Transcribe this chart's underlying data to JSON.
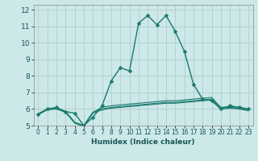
{
  "title": "",
  "xlabel": "Humidex (Indice chaleur)",
  "bg_color": "#cce8e8",
  "grid_color": "#b0cccc",
  "line_color": "#1a7a6e",
  "xlim": [
    -0.5,
    23.5
  ],
  "ylim": [
    5,
    12.3
  ],
  "yticks": [
    5,
    6,
    7,
    8,
    9,
    10,
    11,
    12
  ],
  "xticks": [
    0,
    1,
    2,
    3,
    4,
    5,
    6,
    7,
    8,
    9,
    10,
    11,
    12,
    13,
    14,
    15,
    16,
    17,
    18,
    19,
    20,
    21,
    22,
    23
  ],
  "xticklabels": [
    "0",
    "1",
    "2",
    "3",
    "4",
    "5",
    "6",
    "7",
    "8",
    "9",
    "10",
    "11",
    "12",
    "13",
    "14",
    "15",
    "16",
    "17",
    "18",
    "19",
    "20",
    "21",
    "22",
    "23"
  ],
  "lines": [
    {
      "x": [
        0,
        1,
        2,
        3,
        4,
        5,
        6,
        7,
        8,
        9,
        10,
        11,
        12,
        13,
        14,
        15,
        16,
        17,
        18,
        19,
        20,
        21,
        22,
        23
      ],
      "y": [
        5.7,
        6.0,
        6.1,
        5.85,
        5.75,
        5.0,
        5.5,
        6.2,
        7.7,
        8.5,
        8.3,
        11.2,
        11.65,
        11.1,
        11.65,
        10.7,
        9.5,
        7.5,
        6.6,
        6.5,
        6.0,
        6.2,
        6.1,
        6.0
      ],
      "marker": true,
      "lw": 1.0,
      "ms": 2.5
    },
    {
      "x": [
        0,
        1,
        2,
        3,
        4,
        5,
        6,
        7,
        8,
        9,
        10,
        11,
        12,
        13,
        14,
        15,
        16,
        17,
        18,
        19,
        20,
        21,
        22,
        23
      ],
      "y": [
        5.7,
        6.0,
        6.05,
        5.85,
        5.2,
        5.0,
        5.8,
        6.1,
        6.2,
        6.25,
        6.3,
        6.35,
        6.4,
        6.45,
        6.5,
        6.5,
        6.55,
        6.6,
        6.65,
        6.7,
        6.1,
        6.15,
        6.1,
        6.0
      ],
      "marker": false,
      "lw": 0.8,
      "ms": 0
    },
    {
      "x": [
        0,
        1,
        2,
        3,
        4,
        5,
        6,
        7,
        8,
        9,
        10,
        11,
        12,
        13,
        14,
        15,
        16,
        17,
        18,
        19,
        20,
        21,
        22,
        23
      ],
      "y": [
        5.7,
        6.0,
        6.05,
        5.85,
        5.2,
        5.0,
        5.8,
        6.0,
        6.1,
        6.15,
        6.2,
        6.25,
        6.3,
        6.35,
        6.4,
        6.4,
        6.45,
        6.5,
        6.55,
        6.6,
        6.05,
        6.1,
        6.05,
        5.95
      ],
      "marker": false,
      "lw": 0.8,
      "ms": 0
    },
    {
      "x": [
        0,
        1,
        2,
        3,
        4,
        5,
        6,
        7,
        8,
        9,
        10,
        11,
        12,
        13,
        14,
        15,
        16,
        17,
        18,
        19,
        20,
        21,
        22,
        23
      ],
      "y": [
        5.65,
        5.95,
        6.0,
        5.8,
        5.15,
        4.95,
        5.75,
        5.95,
        6.05,
        6.1,
        6.15,
        6.2,
        6.25,
        6.3,
        6.35,
        6.35,
        6.4,
        6.45,
        6.5,
        6.55,
        6.0,
        6.05,
        6.0,
        5.9
      ],
      "marker": false,
      "lw": 0.8,
      "ms": 0
    }
  ]
}
